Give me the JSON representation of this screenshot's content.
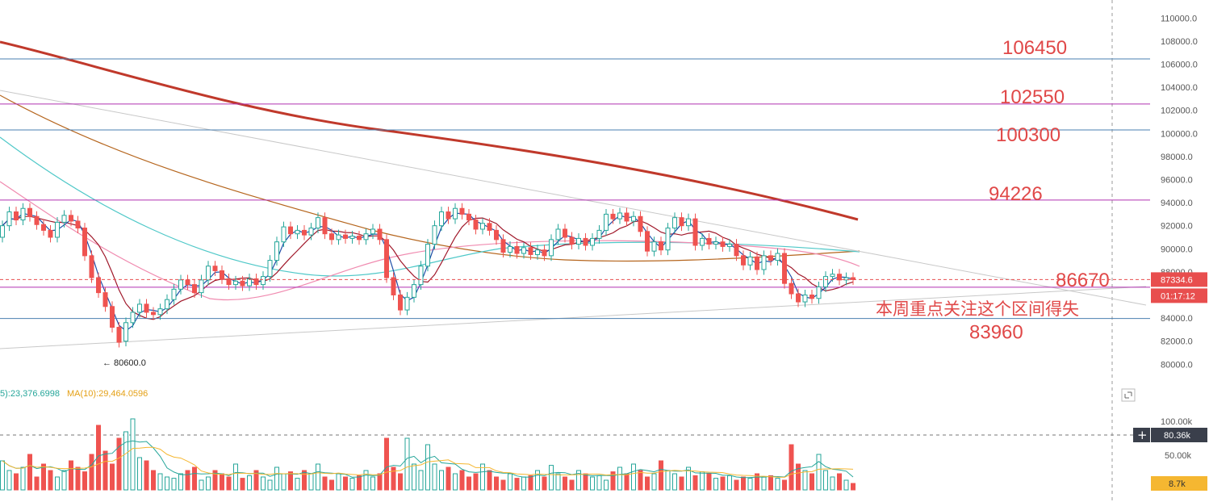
{
  "price_axis": {
    "ticks": [
      "110000.0",
      "108000.0",
      "106000.0",
      "104000.0",
      "102000.0",
      "100000.0",
      "98000.0",
      "96000.0",
      "94000.0",
      "92000.0",
      "90000.0",
      "88000.0",
      "86000.0",
      "84000.0",
      "82000.0",
      "80000.0"
    ]
  },
  "volume_axis": {
    "ticks": [
      "100.00k",
      "50.00k"
    ]
  },
  "last_price_label": "87334.6",
  "countdown_label": "01:17:12",
  "volume_crosshair_label": "80.36k",
  "crosshair_plus": "+",
  "last_volume_label": "8.7k",
  "volume_ma": {
    "ma5": "5):23,376.6998",
    "ma10": "MA(10):29,464.0596"
  },
  "low_marker": "← 80600.0",
  "levels": [
    {
      "label": "106450",
      "price": 106450,
      "line_color": "#4a7fb0",
      "text_color": "#e04848"
    },
    {
      "label": "102550",
      "price": 102550,
      "line_color": "#b030b0",
      "text_color": "#e04848"
    },
    {
      "label": "100300",
      "price": 100300,
      "line_color": "#4a7fb0",
      "text_color": "#e04848"
    },
    {
      "label": "94226",
      "price": 94226,
      "line_color": "#b030b0",
      "text_color": "#e04848"
    },
    {
      "label": "86670",
      "price": 86670,
      "line_color": "#b030b0",
      "text_color": "#e04848"
    },
    {
      "label": "83960",
      "price": 83960,
      "line_color": "#4a7fb0",
      "text_color": "#e04848"
    }
  ],
  "annotation": "本周重点关注这个区间得失",
  "colors": {
    "up": "#26a69a",
    "down": "#ef5350",
    "ma_long": "#c0392b",
    "last_price_bg": "#e84e4e",
    "volume_last_bg": "#f5b731"
  },
  "chart_data": {
    "type": "candlestick",
    "y_range": [
      78900,
      111000
    ],
    "price_series": [
      {
        "x": 0,
        "o": 91000,
        "c": 92000
      },
      {
        "x": 1,
        "o": 92000,
        "c": 93200
      },
      {
        "x": 2,
        "o": 93200,
        "c": 92500
      },
      {
        "x": 3,
        "o": 92500,
        "c": 93500
      },
      {
        "x": 4,
        "o": 93500,
        "c": 92800
      },
      {
        "x": 5,
        "o": 92800,
        "c": 92100
      },
      {
        "x": 6,
        "o": 92100,
        "c": 91600
      },
      {
        "x": 7,
        "o": 91600,
        "c": 91000
      },
      {
        "x": 8,
        "o": 91000,
        "c": 92300
      },
      {
        "x": 9,
        "o": 92300,
        "c": 92900
      },
      {
        "x": 10,
        "o": 92900,
        "c": 92400
      },
      {
        "x": 11,
        "o": 92400,
        "c": 91800
      },
      {
        "x": 12,
        "o": 91800,
        "c": 89400
      },
      {
        "x": 13,
        "o": 89400,
        "c": 87500
      },
      {
        "x": 14,
        "o": 87500,
        "c": 86200
      },
      {
        "x": 15,
        "o": 86200,
        "c": 85000
      },
      {
        "x": 16,
        "o": 85000,
        "c": 83200
      },
      {
        "x": 17,
        "o": 83200,
        "c": 81900
      },
      {
        "x": 18,
        "o": 82000,
        "c": 83600
      },
      {
        "x": 19,
        "o": 83600,
        "c": 84500
      },
      {
        "x": 20,
        "o": 84500,
        "c": 85200
      },
      {
        "x": 21,
        "o": 85200,
        "c": 84500
      },
      {
        "x": 22,
        "o": 84500,
        "c": 84300
      },
      {
        "x": 23,
        "o": 84300,
        "c": 84800
      },
      {
        "x": 24,
        "o": 84800,
        "c": 85600
      },
      {
        "x": 25,
        "o": 85600,
        "c": 86500
      },
      {
        "x": 26,
        "o": 86500,
        "c": 87300
      },
      {
        "x": 27,
        "o": 87300,
        "c": 86900
      },
      {
        "x": 28,
        "o": 86900,
        "c": 86200
      },
      {
        "x": 29,
        "o": 86200,
        "c": 87300
      },
      {
        "x": 30,
        "o": 87300,
        "c": 88500
      },
      {
        "x": 31,
        "o": 88500,
        "c": 88100
      },
      {
        "x": 32,
        "o": 88100,
        "c": 87400
      },
      {
        "x": 33,
        "o": 87400,
        "c": 86900
      },
      {
        "x": 34,
        "o": 86900,
        "c": 87200
      },
      {
        "x": 35,
        "o": 87200,
        "c": 86800
      },
      {
        "x": 36,
        "o": 86800,
        "c": 87400
      },
      {
        "x": 37,
        "o": 87400,
        "c": 86900
      },
      {
        "x": 38,
        "o": 86900,
        "c": 87600
      },
      {
        "x": 39,
        "o": 87600,
        "c": 89000
      },
      {
        "x": 40,
        "o": 89000,
        "c": 90600
      },
      {
        "x": 41,
        "o": 90600,
        "c": 91900
      },
      {
        "x": 42,
        "o": 91900,
        "c": 91300
      },
      {
        "x": 43,
        "o": 91300,
        "c": 91600
      },
      {
        "x": 44,
        "o": 91600,
        "c": 91200
      },
      {
        "x": 45,
        "o": 91200,
        "c": 91800
      },
      {
        "x": 46,
        "o": 91800,
        "c": 92700
      },
      {
        "x": 47,
        "o": 92700,
        "c": 91300
      },
      {
        "x": 48,
        "o": 91300,
        "c": 90800
      },
      {
        "x": 49,
        "o": 90800,
        "c": 91200
      },
      {
        "x": 50,
        "o": 91200,
        "c": 90900
      },
      {
        "x": 51,
        "o": 90900,
        "c": 91100
      },
      {
        "x": 52,
        "o": 91100,
        "c": 90800
      },
      {
        "x": 53,
        "o": 90800,
        "c": 91300
      },
      {
        "x": 54,
        "o": 91300,
        "c": 91700
      },
      {
        "x": 55,
        "o": 91700,
        "c": 90800
      },
      {
        "x": 56,
        "o": 90800,
        "c": 87500
      },
      {
        "x": 57,
        "o": 87500,
        "c": 86000
      },
      {
        "x": 58,
        "o": 86000,
        "c": 84700
      },
      {
        "x": 59,
        "o": 84700,
        "c": 85800
      },
      {
        "x": 60,
        "o": 85800,
        "c": 86900
      },
      {
        "x": 61,
        "o": 86900,
        "c": 88500
      },
      {
        "x": 62,
        "o": 88500,
        "c": 90400
      },
      {
        "x": 63,
        "o": 90400,
        "c": 92000
      },
      {
        "x": 64,
        "o": 92000,
        "c": 93200
      },
      {
        "x": 65,
        "o": 93200,
        "c": 92600
      },
      {
        "x": 66,
        "o": 92600,
        "c": 93500
      },
      {
        "x": 67,
        "o": 93500,
        "c": 93000
      },
      {
        "x": 68,
        "o": 93000,
        "c": 92500
      },
      {
        "x": 69,
        "o": 92500,
        "c": 91700
      },
      {
        "x": 70,
        "o": 91700,
        "c": 92200
      },
      {
        "x": 71,
        "o": 92200,
        "c": 91600
      },
      {
        "x": 72,
        "o": 91600,
        "c": 90800
      },
      {
        "x": 73,
        "o": 90800,
        "c": 89700
      },
      {
        "x": 74,
        "o": 89700,
        "c": 90200
      },
      {
        "x": 75,
        "o": 90200,
        "c": 89600
      },
      {
        "x": 76,
        "o": 89600,
        "c": 90100
      },
      {
        "x": 77,
        "o": 90100,
        "c": 89500
      },
      {
        "x": 78,
        "o": 89500,
        "c": 89900
      },
      {
        "x": 79,
        "o": 89900,
        "c": 89400
      },
      {
        "x": 80,
        "o": 89400,
        "c": 90800
      },
      {
        "x": 81,
        "o": 90800,
        "c": 91700
      },
      {
        "x": 82,
        "o": 91700,
        "c": 91000
      },
      {
        "x": 83,
        "o": 91000,
        "c": 90400
      },
      {
        "x": 84,
        "o": 90400,
        "c": 90900
      },
      {
        "x": 85,
        "o": 90900,
        "c": 90300
      },
      {
        "x": 86,
        "o": 90300,
        "c": 90900
      },
      {
        "x": 87,
        "o": 90900,
        "c": 91600
      },
      {
        "x": 88,
        "o": 91600,
        "c": 93000
      },
      {
        "x": 89,
        "o": 93000,
        "c": 92600
      },
      {
        "x": 90,
        "o": 92600,
        "c": 93100
      },
      {
        "x": 91,
        "o": 93100,
        "c": 92400
      },
      {
        "x": 92,
        "o": 92400,
        "c": 92800
      },
      {
        "x": 93,
        "o": 92800,
        "c": 91500
      },
      {
        "x": 94,
        "o": 91500,
        "c": 89800
      },
      {
        "x": 95,
        "o": 89800,
        "c": 90600
      },
      {
        "x": 96,
        "o": 90600,
        "c": 89900
      },
      {
        "x": 97,
        "o": 89900,
        "c": 91800
      },
      {
        "x": 98,
        "o": 91800,
        "c": 92700
      },
      {
        "x": 99,
        "o": 92700,
        "c": 92000
      },
      {
        "x": 100,
        "o": 92000,
        "c": 92600
      },
      {
        "x": 101,
        "o": 92600,
        "c": 90300
      },
      {
        "x": 102,
        "o": 90300,
        "c": 90900
      },
      {
        "x": 103,
        "o": 90900,
        "c": 90400
      },
      {
        "x": 104,
        "o": 90400,
        "c": 90600
      },
      {
        "x": 105,
        "o": 90600,
        "c": 90200
      },
      {
        "x": 106,
        "o": 90200,
        "c": 90400
      },
      {
        "x": 107,
        "o": 90400,
        "c": 89400
      },
      {
        "x": 108,
        "o": 89400,
        "c": 88600
      },
      {
        "x": 109,
        "o": 88600,
        "c": 89300
      },
      {
        "x": 110,
        "o": 89300,
        "c": 88200
      },
      {
        "x": 111,
        "o": 88200,
        "c": 89400
      },
      {
        "x": 112,
        "o": 89400,
        "c": 89000
      },
      {
        "x": 113,
        "o": 89000,
        "c": 89600
      },
      {
        "x": 114,
        "o": 89600,
        "c": 87000
      },
      {
        "x": 115,
        "o": 87000,
        "c": 86100
      },
      {
        "x": 116,
        "o": 86100,
        "c": 85400
      },
      {
        "x": 117,
        "o": 85400,
        "c": 86000
      },
      {
        "x": 118,
        "o": 86000,
        "c": 85700
      },
      {
        "x": 119,
        "o": 85700,
        "c": 86700
      },
      {
        "x": 120,
        "o": 86700,
        "c": 87600
      },
      {
        "x": 121,
        "o": 87600,
        "c": 87800
      },
      {
        "x": 122,
        "o": 87800,
        "c": 87300
      },
      {
        "x": 123,
        "o": 87300,
        "c": 87500
      },
      {
        "x": 124,
        "o": 87500,
        "c": 87335
      }
    ],
    "volume": [
      45,
      30,
      25,
      35,
      55,
      20,
      40,
      30,
      20,
      30,
      45,
      35,
      28,
      55,
      100,
      60,
      40,
      80,
      90,
      110,
      50,
      45,
      30,
      25,
      20,
      18,
      25,
      30,
      35,
      15,
      20,
      30,
      25,
      20,
      40,
      18,
      22,
      30,
      20,
      15,
      35,
      25,
      28,
      18,
      30,
      25,
      40,
      20,
      15,
      25,
      20,
      18,
      22,
      30,
      20,
      25,
      80,
      35,
      25,
      80,
      40,
      30,
      70,
      40,
      30,
      35,
      25,
      30,
      20,
      25,
      40,
      30,
      20,
      15,
      25,
      18,
      20,
      22,
      30,
      20,
      38,
      25,
      20,
      15,
      30,
      25,
      20,
      22,
      15,
      28,
      35,
      25,
      40,
      30,
      20,
      25,
      45,
      30,
      25,
      20,
      35,
      22,
      28,
      25,
      18,
      20,
      22,
      15,
      20,
      18,
      25,
      20,
      22,
      18,
      15,
      70,
      40,
      30,
      25,
      55,
      30,
      20,
      25,
      15,
      10
    ],
    "volume_y_range": [
      0,
      140
    ]
  }
}
